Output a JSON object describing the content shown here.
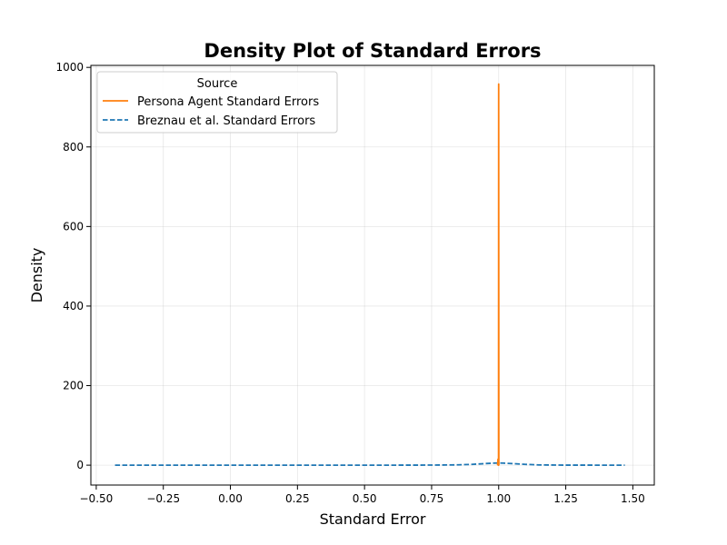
{
  "chart_data": {
    "type": "line",
    "title": "Density Plot of Standard Errors",
    "xlabel": "Standard Error",
    "ylabel": "Density",
    "xlim": [
      -0.52,
      1.58
    ],
    "ylim": [
      -50,
      1005
    ],
    "xticks": [
      -0.5,
      -0.25,
      0.0,
      0.25,
      0.5,
      0.75,
      1.0,
      1.25,
      1.5
    ],
    "xtick_labels": [
      "−0.50",
      "−0.25",
      "0.00",
      "0.25",
      "0.50",
      "0.75",
      "1.00",
      "1.25",
      "1.50"
    ],
    "yticks": [
      0,
      200,
      400,
      600,
      800,
      1000
    ],
    "ytick_labels": [
      "0",
      "200",
      "400",
      "600",
      "800",
      "1000"
    ],
    "grid": true,
    "legend": {
      "title": "Source",
      "placement": "top-left"
    },
    "series": [
      {
        "name": "Persona Agent Standard Errors",
        "color": "#ff7f0e",
        "style": "solid",
        "x": [
          0.996,
          0.9975,
          0.998,
          0.9985,
          0.999,
          0.9995,
          0.99995,
          1.0005,
          1.001,
          1.0015,
          1.002
        ],
        "y": [
          0,
          15,
          0,
          0,
          0,
          0,
          958,
          0,
          0,
          0,
          0
        ]
      },
      {
        "name": "Breznau et al. Standard Errors",
        "color": "#1f77b4",
        "style": "dashed",
        "x": [
          -0.43,
          -0.2,
          0.0,
          0.2,
          0.4,
          0.6,
          0.75,
          0.85,
          0.9,
          0.95,
          0.98,
          1.0,
          1.02,
          1.05,
          1.1,
          1.15,
          1.25,
          1.4,
          1.47
        ],
        "y": [
          0,
          0,
          0,
          0,
          0,
          0,
          0.2,
          0.8,
          2,
          4,
          5,
          5.5,
          5,
          4,
          2,
          0.6,
          0.1,
          0,
          0
        ]
      }
    ]
  }
}
